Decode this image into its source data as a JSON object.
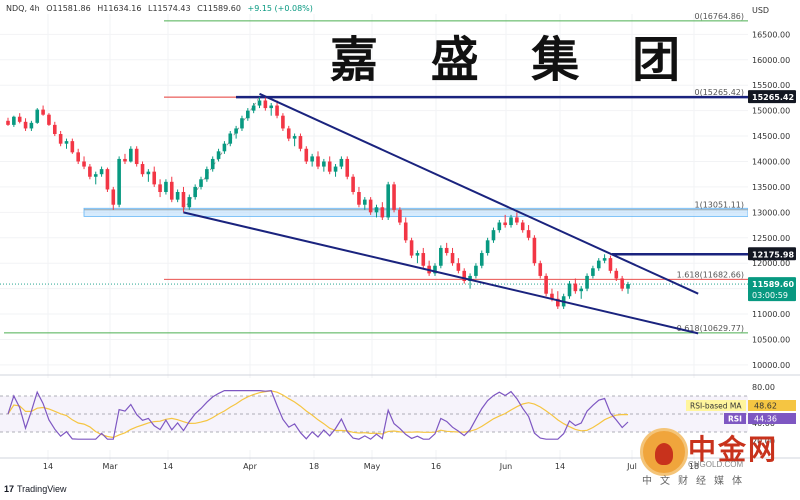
{
  "header": {
    "symbol": "NDQ, 4h",
    "open": "O11581.86",
    "high": "H11634.16",
    "low": "L11574.43",
    "close": "C11589.60",
    "change": "+9.15 (+0.08%)"
  },
  "watermark": "嘉 盛 集 团",
  "footer": {
    "tv_mark": "17",
    "tv_text": "TradingView"
  },
  "logo": {
    "main": "中金网",
    "url": "CNGOLD.COM",
    "sub": "中文财经媒体"
  },
  "colors": {
    "up": "#089981",
    "down": "#f23645",
    "channel": "#1a237e",
    "rsi": "#7e57c2",
    "rsi_ma": "#f5c542",
    "zone": "#bbdefb"
  },
  "chart_data": {
    "type": "candlestick",
    "price_axis": {
      "currency": "USD",
      "ticks": [
        16500,
        16000,
        15500,
        15000,
        14500,
        14000,
        13500,
        13000,
        12500,
        12000,
        11500,
        11000,
        10500,
        10000
      ],
      "labels": [
        "16500.00",
        "16000.00",
        "15500.00",
        "15000.00",
        "14500.00",
        "14000.00",
        "13500.00",
        "13000.00",
        "12500.00",
        "12000.00",
        "11500.00",
        "11000.00",
        "10500.00",
        "10000.00"
      ],
      "range": [
        9900,
        16900
      ]
    },
    "time_axis": {
      "labels": [
        "14",
        "Mar",
        "14",
        "Apr",
        "18",
        "May",
        "16",
        "Jun",
        "14",
        "Jul",
        "18"
      ]
    },
    "price_tags": [
      {
        "value": 15265.42,
        "label": "15265.42",
        "style": "dark"
      },
      {
        "value": 12175.98,
        "label": "12175.98",
        "style": "dark"
      },
      {
        "value": 11589.6,
        "label": "11589.60",
        "sublabel": "03:00:59",
        "style": "green"
      }
    ],
    "fib_levels": [
      {
        "label": "0(16764.86)",
        "value": 16764.86
      },
      {
        "label": "0(15265.42)",
        "value": 15265.42
      },
      {
        "label": "1(13051.11)",
        "value": 13051.11
      },
      {
        "label": "1.618(11682.66)",
        "value": 11682.66
      },
      {
        "label": "0.618(10629.77)",
        "value": 10629.77
      }
    ],
    "candles_approx": [
      [
        14800,
        14860,
        14700,
        14720
      ],
      [
        14720,
        14900,
        14680,
        14880
      ],
      [
        14880,
        14950,
        14750,
        14780
      ],
      [
        14780,
        14850,
        14600,
        14650
      ],
      [
        14650,
        14800,
        14600,
        14760
      ],
      [
        14760,
        15050,
        14740,
        15020
      ],
      [
        15020,
        15100,
        14900,
        14920
      ],
      [
        14920,
        14950,
        14700,
        14720
      ],
      [
        14720,
        14780,
        14500,
        14540
      ],
      [
        14540,
        14600,
        14300,
        14350
      ],
      [
        14350,
        14450,
        14250,
        14400
      ],
      [
        14400,
        14450,
        14150,
        14180
      ],
      [
        14180,
        14250,
        13950,
        14000
      ],
      [
        14000,
        14100,
        13850,
        13900
      ],
      [
        13900,
        13950,
        13650,
        13700
      ],
      [
        13700,
        13800,
        13550,
        13750
      ],
      [
        13750,
        13900,
        13700,
        13850
      ],
      [
        13850,
        13880,
        13400,
        13450
      ],
      [
        13450,
        13500,
        13050,
        13150
      ],
      [
        13150,
        14100,
        13100,
        14050
      ],
      [
        14050,
        14150,
        13950,
        14000
      ],
      [
        14000,
        14300,
        13980,
        14250
      ],
      [
        14250,
        14300,
        13900,
        13950
      ],
      [
        13950,
        14000,
        13700,
        13750
      ],
      [
        13750,
        13850,
        13600,
        13800
      ],
      [
        13800,
        13900,
        13500,
        13550
      ],
      [
        13550,
        13650,
        13300,
        13400
      ],
      [
        13400,
        13650,
        13350,
        13600
      ],
      [
        13600,
        13700,
        13200,
        13250
      ],
      [
        13250,
        13450,
        13200,
        13400
      ],
      [
        13400,
        13500,
        13000,
        13100
      ],
      [
        13100,
        13350,
        13050,
        13300
      ],
      [
        13300,
        13550,
        13250,
        13500
      ],
      [
        13500,
        13700,
        13450,
        13650
      ],
      [
        13650,
        13900,
        13600,
        13850
      ],
      [
        13850,
        14100,
        13800,
        14050
      ],
      [
        14050,
        14250,
        14000,
        14200
      ],
      [
        14200,
        14400,
        14150,
        14350
      ],
      [
        14350,
        14600,
        14300,
        14550
      ],
      [
        14550,
        14700,
        14450,
        14650
      ],
      [
        14650,
        14900,
        14600,
        14850
      ],
      [
        14850,
        15050,
        14800,
        15000
      ],
      [
        15000,
        15150,
        14950,
        15100
      ],
      [
        15100,
        15265,
        15050,
        15200
      ],
      [
        15200,
        15260,
        15000,
        15050
      ],
      [
        15050,
        15150,
        14900,
        15100
      ],
      [
        15100,
        15200,
        14850,
        14900
      ],
      [
        14900,
        14950,
        14600,
        14650
      ],
      [
        14650,
        14700,
        14400,
        14450
      ],
      [
        14450,
        14550,
        14300,
        14500
      ],
      [
        14500,
        14550,
        14200,
        14250
      ],
      [
        14250,
        14300,
        13950,
        14000
      ],
      [
        14000,
        14150,
        13900,
        14100
      ],
      [
        14100,
        14200,
        13850,
        13900
      ],
      [
        13900,
        14050,
        13800,
        14000
      ],
      [
        14000,
        14100,
        13750,
        13800
      ],
      [
        13800,
        13950,
        13700,
        13900
      ],
      [
        13900,
        14100,
        13850,
        14050
      ],
      [
        14050,
        14100,
        13650,
        13700
      ],
      [
        13700,
        13750,
        13350,
        13400
      ],
      [
        13400,
        13500,
        13100,
        13150
      ],
      [
        13150,
        13300,
        13050,
        13250
      ],
      [
        13250,
        13300,
        12950,
        13000
      ],
      [
        13000,
        13150,
        12900,
        13100
      ],
      [
        13100,
        13200,
        12850,
        12900
      ],
      [
        12900,
        13600,
        12850,
        13550
      ],
      [
        13550,
        13600,
        13000,
        13050
      ],
      [
        13050,
        13100,
        12750,
        12800
      ],
      [
        12800,
        12900,
        12400,
        12450
      ],
      [
        12450,
        12500,
        12100,
        12150
      ],
      [
        12150,
        12250,
        12000,
        12200
      ],
      [
        12200,
        12300,
        11900,
        11950
      ],
      [
        11950,
        12050,
        11750,
        11800
      ],
      [
        11800,
        12000,
        11750,
        11950
      ],
      [
        11950,
        12350,
        11900,
        12300
      ],
      [
        12300,
        12400,
        12150,
        12200
      ],
      [
        12200,
        12300,
        11950,
        12000
      ],
      [
        12000,
        12100,
        11800,
        11850
      ],
      [
        11850,
        11900,
        11600,
        11650
      ],
      [
        11650,
        11800,
        11500,
        11750
      ],
      [
        11750,
        12000,
        11700,
        11950
      ],
      [
        11950,
        12250,
        11900,
        12200
      ],
      [
        12200,
        12500,
        12150,
        12450
      ],
      [
        12450,
        12700,
        12400,
        12650
      ],
      [
        12650,
        12850,
        12600,
        12800
      ],
      [
        12800,
        12950,
        12700,
        12750
      ],
      [
        12750,
        12950,
        12700,
        12900
      ],
      [
        12900,
        13000,
        12750,
        12800
      ],
      [
        12800,
        12850,
        12600,
        12650
      ],
      [
        12650,
        12750,
        12450,
        12500
      ],
      [
        12500,
        12550,
        11950,
        12000
      ],
      [
        12000,
        12050,
        11700,
        11750
      ],
      [
        11750,
        11800,
        11350,
        11400
      ],
      [
        11400,
        11500,
        11250,
        11300
      ],
      [
        11300,
        11450,
        11100,
        11150
      ],
      [
        11150,
        11400,
        11100,
        11350
      ],
      [
        11350,
        11650,
        11300,
        11600
      ],
      [
        11600,
        11700,
        11400,
        11450
      ],
      [
        11450,
        11550,
        11300,
        11500
      ],
      [
        11500,
        11800,
        11450,
        11750
      ],
      [
        11750,
        11950,
        11700,
        11900
      ],
      [
        11900,
        12100,
        11850,
        12050
      ],
      [
        12050,
        12175,
        12000,
        12100
      ],
      [
        12100,
        12150,
        11800,
        11850
      ],
      [
        11850,
        11900,
        11650,
        11700
      ],
      [
        11700,
        11750,
        11450,
        11500
      ],
      [
        11500,
        11634,
        11400,
        11590
      ]
    ],
    "trendlines": [
      {
        "name": "upper-channel",
        "from": {
          "x_index": 43,
          "value": 15330
        },
        "to": {
          "x_index": 118,
          "value": 11400
        }
      },
      {
        "name": "lower-channel",
        "from": {
          "x_index": 30,
          "value": 13000
        },
        "to": {
          "x_index": 118,
          "value": 10620
        }
      }
    ],
    "support_zone": {
      "low": 12920,
      "high": 13080
    },
    "rsi": {
      "ticks": [
        80,
        60,
        40,
        20
      ],
      "labels": [
        "80.00",
        "60.00",
        "40.00",
        "20.00"
      ],
      "range": [
        10,
        90
      ],
      "overbought": 70,
      "middle": 50,
      "oversold": 30,
      "rsi_ma_label": "RSI-based MA",
      "rsi_ma_value": "48.62",
      "rsi_label": "RSI",
      "rsi_value": "44.36"
    }
  }
}
